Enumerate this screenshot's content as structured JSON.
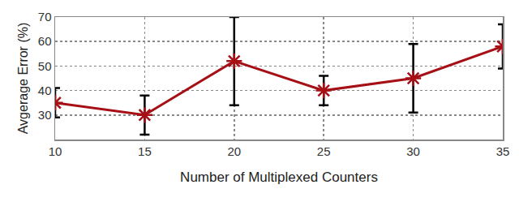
{
  "chart_data": {
    "type": "line",
    "x_label": "Number of Multiplexed Counters",
    "y_label": "Avgerage Error (%)",
    "x": [
      10,
      15,
      20,
      25,
      30,
      35
    ],
    "values": [
      35,
      30,
      52,
      40,
      45,
      58
    ],
    "error": [
      6,
      8,
      18,
      6,
      14,
      9
    ],
    "color": "#a50f15",
    "marker": "asterisk",
    "line_style": "solid",
    "xlim": [
      10,
      35
    ],
    "xticks": [
      10,
      15,
      20,
      25,
      30,
      35
    ],
    "ylim": [
      20,
      70
    ],
    "yticks": [
      30,
      40,
      50,
      60,
      70
    ],
    "grid": true
  }
}
